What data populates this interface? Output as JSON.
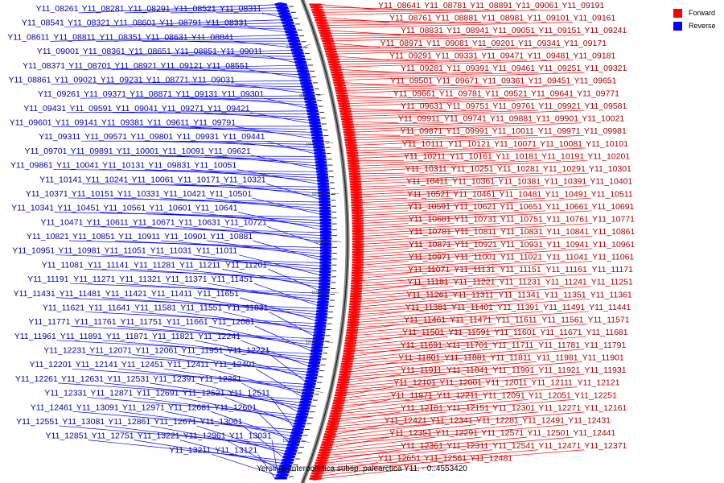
{
  "title": "Yersinia enterocolitica subsp. palearctica Y11. - 0..4553420",
  "legend": {
    "forward": {
      "label": "Forward",
      "color": "#ff0000"
    },
    "reverse": {
      "label": "Reverse",
      "color": "#0000ff"
    }
  },
  "ticks": [
    "900 kbp",
    "950 kbp",
    "1000 kbp",
    "1050 kbp",
    "1100 kbp",
    "1150 kbp",
    "1200 kbp",
    "1250 kbp",
    "1300 kbp"
  ],
  "reverse_genes": [
    "Y11_08261",
    "Y11_08281",
    "Y11_08291",
    "Y11_08521",
    "Y11_08311",
    "Y11_08541",
    "Y11_08321",
    "Y11_08601",
    "Y11_08791",
    "Y11_08331",
    "Y11_08611",
    "Y11_08811",
    "Y11_08351",
    "Y11_08631",
    "Y11_08841",
    "Y11_09001",
    "Y11_08361",
    "Y11_08651",
    "Y11_08851",
    "Y11_09011",
    "Y11_08371",
    "Y11_08701",
    "Y11_08921",
    "Y11_09121",
    "Y11_08551",
    "Y11_08861",
    "Y11_09021",
    "Y11_09231",
    "Y11_08771",
    "Y11_09031",
    "Y11_09261",
    "Y11_09371",
    "Y11_08871",
    "Y11_09131",
    "Y11_09301",
    "Y11_09431",
    "Y11_09591",
    "Y11_09041",
    "Y11_09271",
    "Y11_09421",
    "Y11_09601",
    "Y11_09141",
    "Y11_09381",
    "Y11_09611",
    "Y11_09791",
    "Y11_09311",
    "Y11_09571",
    "Y11_09801",
    "Y11_09931",
    "Y11_09441",
    "Y11_09701",
    "Y11_09891",
    "Y11_10001",
    "Y11_10091",
    "Y11_09621",
    "Y11_09861",
    "Y11_10041",
    "Y11_10131",
    "Y11_09831",
    "Y11_10051",
    "Y11_10141",
    "Y11_10241",
    "Y11_10061",
    "Y11_10171",
    "Y11_10321",
    "Y11_10371",
    "Y11_10151",
    "Y11_10331",
    "Y11_10421",
    "Y11_10501",
    "Y11_10341",
    "Y11_10451",
    "Y11_10561",
    "Y11_10601",
    "Y11_10641",
    "Y11_10471",
    "Y11_10611",
    "Y11_10671",
    "Y11_10631",
    "Y11_10721",
    "Y11_10821",
    "Y11_10851",
    "Y11_10911",
    "Y11_10901",
    "Y11_10881",
    "Y11_10951",
    "Y11_10981",
    "Y11_11051",
    "Y11_11031",
    "Y11_11011",
    "Y11_11081",
    "Y11_11141",
    "Y11_11281",
    "Y11_11211",
    "Y11_11201",
    "Y11_11191",
    "Y11_11271",
    "Y11_11321",
    "Y11_11371",
    "Y11_11451",
    "Y11_11431",
    "Y11_11481",
    "Y11_11421",
    "Y11_11411",
    "Y11_11651",
    "Y11_11621",
    "Y11_11641",
    "Y11_11581",
    "Y11_11551",
    "Y11_11831",
    "Y11_11771",
    "Y11_11761",
    "Y11_11751",
    "Y11_11661",
    "Y11_12081",
    "Y11_11961",
    "Y11_11891",
    "Y11_11871",
    "Y11_11821",
    "Y11_12241",
    "Y11_12231",
    "Y11_12071",
    "Y11_12061",
    "Y11_11951",
    "Y11_12221",
    "Y11_12201",
    "Y11_12141",
    "Y11_12451",
    "Y11_12411",
    "Y11_12401",
    "Y11_12261",
    "Y11_12631",
    "Y11_12531",
    "Y11_12391",
    "Y11_12381",
    "Y11_12331",
    "Y11_12871",
    "Y11_12691",
    "Y11_12521",
    "Y11_12511",
    "Y11_12461",
    "Y11_13091",
    "Y11_12971",
    "Y11_12681",
    "Y11_12601",
    "Y11_12551",
    "Y11_13081",
    "Y11_12861",
    "Y11_12671",
    "Y11_13061",
    "Y11_12851",
    "Y11_12751",
    "Y11_13221",
    "Y11_12961",
    "Y11_13031",
    "Y11_13211",
    "Y11_13121"
  ],
  "forward_genes": [
    "Y11_08641",
    "Y11_08781",
    "Y11_08891",
    "Y11_09061",
    "Y11_09191",
    "Y11_08761",
    "Y11_08881",
    "Y11_08981",
    "Y11_09101",
    "Y11_09161",
    "Y11_08831",
    "Y11_08941",
    "Y11_09051",
    "Y11_09151",
    "Y11_09241",
    "Y11_08971",
    "Y11_09081",
    "Y11_09201",
    "Y11_09341",
    "Y11_09171",
    "Y11_09291",
    "Y11_09331",
    "Y11_09471",
    "Y11_09481",
    "Y11_09181",
    "Y11_09281",
    "Y11_09391",
    "Y11_09461",
    "Y11_09251",
    "Y11_09321",
    "Y11_09501",
    "Y11_09671",
    "Y11_09361",
    "Y11_09451",
    "Y11_09651",
    "Y11_09661",
    "Y11_09781",
    "Y11_09521",
    "Y11_09641",
    "Y11_09771",
    "Y11_09631",
    "Y11_09751",
    "Y11_09761",
    "Y11_09921",
    "Y11_09581",
    "Y11_09911",
    "Y11_09741",
    "Y11_09881",
    "Y11_09901",
    "Y11_10021",
    "Y11_09871",
    "Y11_09991",
    "Y11_10011",
    "Y11_09971",
    "Y11_09981",
    "Y11_10111",
    "Y11_10121",
    "Y11_10071",
    "Y11_10081",
    "Y11_10101",
    "Y11_10211",
    "Y11_10161",
    "Y11_10181",
    "Y11_10191",
    "Y11_10201",
    "Y11_10311",
    "Y11_10251",
    "Y11_10281",
    "Y11_10291",
    "Y11_10301",
    "Y11_10411",
    "Y11_10361",
    "Y11_10381",
    "Y11_10391",
    "Y11_10401",
    "Y11_10521",
    "Y11_10461",
    "Y11_10481",
    "Y11_10491",
    "Y11_10511",
    "Y11_10591",
    "Y11_10621",
    "Y11_10651",
    "Y11_10661",
    "Y11_10691",
    "Y11_10681",
    "Y11_10731",
    "Y11_10751",
    "Y11_10761",
    "Y11_10771",
    "Y11_10781",
    "Y11_10811",
    "Y11_10831",
    "Y11_10841",
    "Y11_10861",
    "Y11_10871",
    "Y11_10921",
    "Y11_10931",
    "Y11_10941",
    "Y11_10961",
    "Y11_10971",
    "Y11_11001",
    "Y11_11021",
    "Y11_11041",
    "Y11_11061",
    "Y11_11071",
    "Y11_11131",
    "Y11_11151",
    "Y11_11161",
    "Y11_11171",
    "Y11_11181",
    "Y11_11221",
    "Y11_11231",
    "Y11_11241",
    "Y11_11251",
    "Y11_11261",
    "Y11_11311",
    "Y11_11341",
    "Y11_11351",
    "Y11_11361",
    "Y11_11381",
    "Y11_11401",
    "Y11_11391",
    "Y11_11491",
    "Y11_11441",
    "Y11_11461",
    "Y11_11471",
    "Y11_11611",
    "Y11_11561",
    "Y11_11571",
    "Y11_11501",
    "Y11_11591",
    "Y11_11601",
    "Y11_11671",
    "Y11_11681",
    "Y11_11691",
    "Y11_11701",
    "Y11_11711",
    "Y11_11781",
    "Y11_11791",
    "Y11_11801",
    "Y11_11881",
    "Y11_11811",
    "Y11_11981",
    "Y11_11901",
    "Y11_11911",
    "Y11_11841",
    "Y11_11991",
    "Y11_11921",
    "Y11_11931",
    "Y11_12101",
    "Y11_12001",
    "Y11_12011",
    "Y11_12111",
    "Y11_12121",
    "Y11_11971",
    "Y11_12211",
    "Y11_12091",
    "Y11_12051",
    "Y11_12251",
    "Y11_12181",
    "Y11_12151",
    "Y11_12301",
    "Y11_12271",
    "Y11_12161",
    "Y11_12421",
    "Y11_12341",
    "Y11_12281",
    "Y11_12491",
    "Y11_12431",
    "Y11_12351",
    "Y11_12291",
    "Y11_12571",
    "Y11_12501",
    "Y11_12441",
    "Y11_12361",
    "Y11_12311",
    "Y11_12541",
    "Y11_12471",
    "Y11_12371",
    "Y11_12651",
    "Y11_12561",
    "Y11_12481"
  ]
}
